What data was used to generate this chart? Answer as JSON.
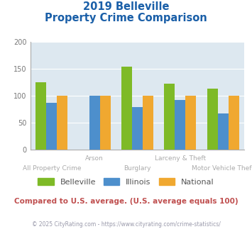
{
  "title_line1": "2019 Belleville",
  "title_line2": "Property Crime Comparison",
  "categories": [
    "All Property Crime",
    "Arson",
    "Burglary",
    "Larceny & Theft",
    "Motor Vehicle Theft"
  ],
  "series": {
    "Belleville": [
      126,
      null,
      154,
      123,
      113
    ],
    "Illinois": [
      87,
      100,
      79,
      93,
      68
    ],
    "National": [
      100,
      100,
      100,
      100,
      100
    ]
  },
  "colors": {
    "Belleville": "#7eba27",
    "Illinois": "#4d8fcc",
    "National": "#f0a830"
  },
  "ylim": [
    0,
    200
  ],
  "yticks": [
    0,
    50,
    100,
    150,
    200
  ],
  "plot_bg_color": "#dde8f0",
  "title_color": "#1a5fa8",
  "footer_text": "Compared to U.S. average. (U.S. average equals 100)",
  "footer_color": "#c05050",
  "copyright_text": "© 2025 CityRating.com - https://www.cityrating.com/crime-statistics/",
  "copyright_color": "#9999aa",
  "bar_width": 0.25,
  "grid_color": "#ffffff",
  "label_row_upper": [
    "",
    "Arson",
    "",
    "Larceny & Theft",
    ""
  ],
  "label_row_lower": [
    "All Property Crime",
    "",
    "Burglary",
    "",
    "Motor Vehicle Theft"
  ],
  "label_color": "#aaaaaa"
}
